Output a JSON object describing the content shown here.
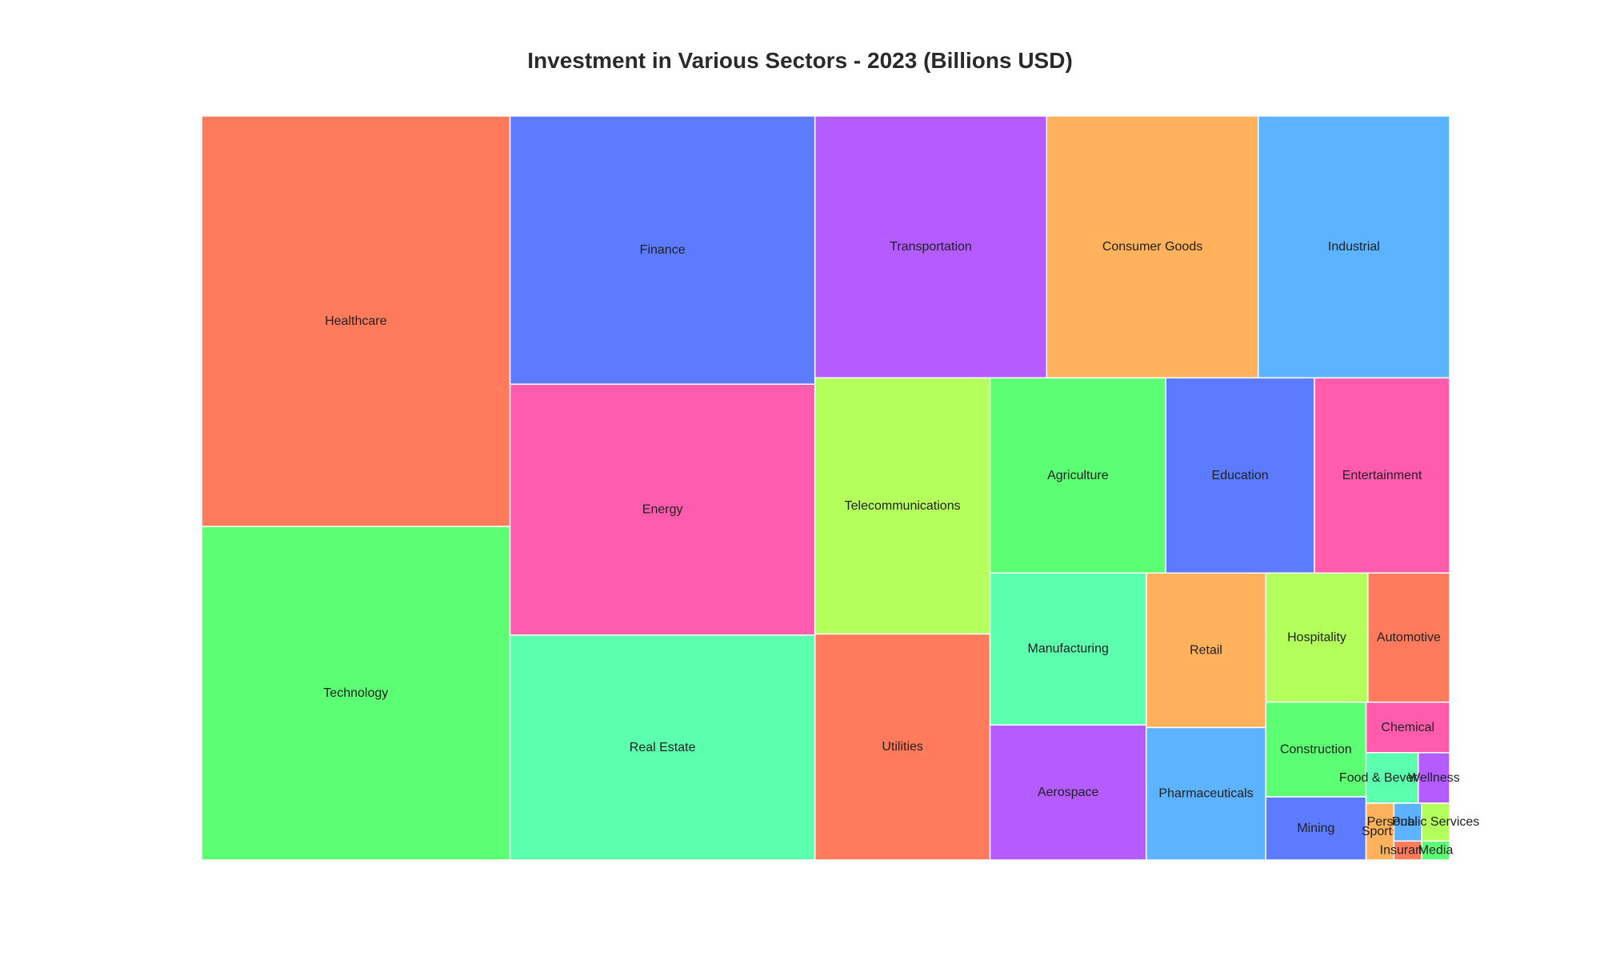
{
  "chart_data": {
    "type": "treemap",
    "title": "Investment in Various Sectors - 2023 (Billions USD)",
    "items": [
      {
        "label": "Healthcare",
        "value": 240,
        "color": "#FF7B5C"
      },
      {
        "label": "Technology",
        "value": 195,
        "color": "#5CFF74"
      },
      {
        "label": "Finance",
        "value": 155,
        "color": "#5C7BFF"
      },
      {
        "label": "Energy",
        "value": 145,
        "color": "#FF5CAE"
      },
      {
        "label": "Real Estate",
        "value": 130,
        "color": "#5CFFAE"
      },
      {
        "label": "Transportation",
        "value": 115,
        "color": "#B45CFF"
      },
      {
        "label": "Consumer Goods",
        "value": 105,
        "color": "#FFB15C"
      },
      {
        "label": "Industrial",
        "value": 95,
        "color": "#5CB3FF"
      },
      {
        "label": "Telecommunications",
        "value": 85,
        "color": "#B4FF5C"
      },
      {
        "label": "Utilities",
        "value": 75,
        "color": "#FF7B5C"
      },
      {
        "label": "Agriculture",
        "value": 65,
        "color": "#5CFF74"
      },
      {
        "label": "Education",
        "value": 55,
        "color": "#5C7BFF"
      },
      {
        "label": "Entertainment",
        "value": 50,
        "color": "#FF5CAE"
      },
      {
        "label": "Manufacturing",
        "value": 45,
        "color": "#5CFFAE"
      },
      {
        "label": "Aerospace",
        "value": 40,
        "color": "#B45CFF"
      },
      {
        "label": "Retail",
        "value": 35,
        "color": "#FFB15C"
      },
      {
        "label": "Pharmaceuticals",
        "value": 30,
        "color": "#5CB3FF"
      },
      {
        "label": "Hospitality",
        "value": 25,
        "color": "#B4FF5C"
      },
      {
        "label": "Automotive",
        "value": 20,
        "color": "#FF7B5C"
      },
      {
        "label": "Construction",
        "value": 18,
        "color": "#5CFF74"
      },
      {
        "label": "Mining",
        "value": 12,
        "color": "#5C7BFF"
      },
      {
        "label": "Chemical",
        "value": 8,
        "color": "#FF5CAE"
      },
      {
        "label": "Food & Beverages",
        "value": 5,
        "color": "#5CFFAE"
      },
      {
        "label": "Wellness",
        "value": 3,
        "color": "#B45CFF"
      },
      {
        "label": "Sports",
        "value": 3,
        "color": "#FFB15C"
      },
      {
        "label": "Personal Care",
        "value": 2,
        "color": "#5CB3FF"
      },
      {
        "label": "Public Services",
        "value": 2,
        "color": "#B4FF5C"
      },
      {
        "label": "Insurance",
        "value": 1,
        "color": "#FF7B5C"
      },
      {
        "label": "Media",
        "value": 1,
        "color": "#5CFF74"
      }
    ]
  }
}
